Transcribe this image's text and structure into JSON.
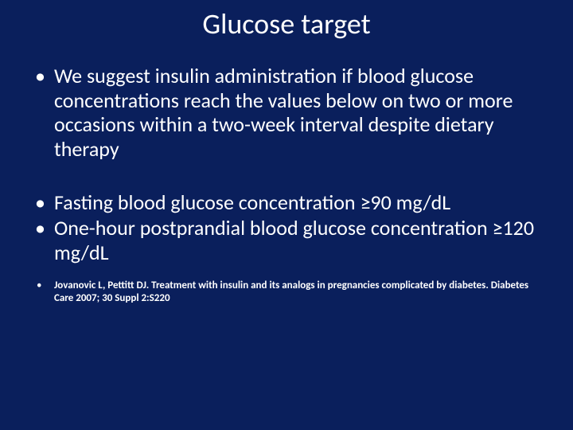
{
  "slide": {
    "background_color": "#0a1f5c",
    "text_color": "#ffffff",
    "title": {
      "text": "Glucose target",
      "fontsize": 36
    },
    "bullets": [
      "We suggest insulin administration if blood glucose concentrations reach the values below on two or more occasions within a two-week interval despite dietary therapy",
      "Fasting blood glucose concentration ≥90 mg/dL",
      "One-hour postprandial blood glucose concentration ≥120 mg/dL"
    ],
    "bullet_fontsize": 26,
    "reference": {
      "text": "Jovanovic L, Pettitt DJ. Treatment with insulin and its analogs in pregnancies complicated by diabetes. Diabetes Care 2007; 30 Suppl 2:S220",
      "fontsize": 13
    }
  }
}
